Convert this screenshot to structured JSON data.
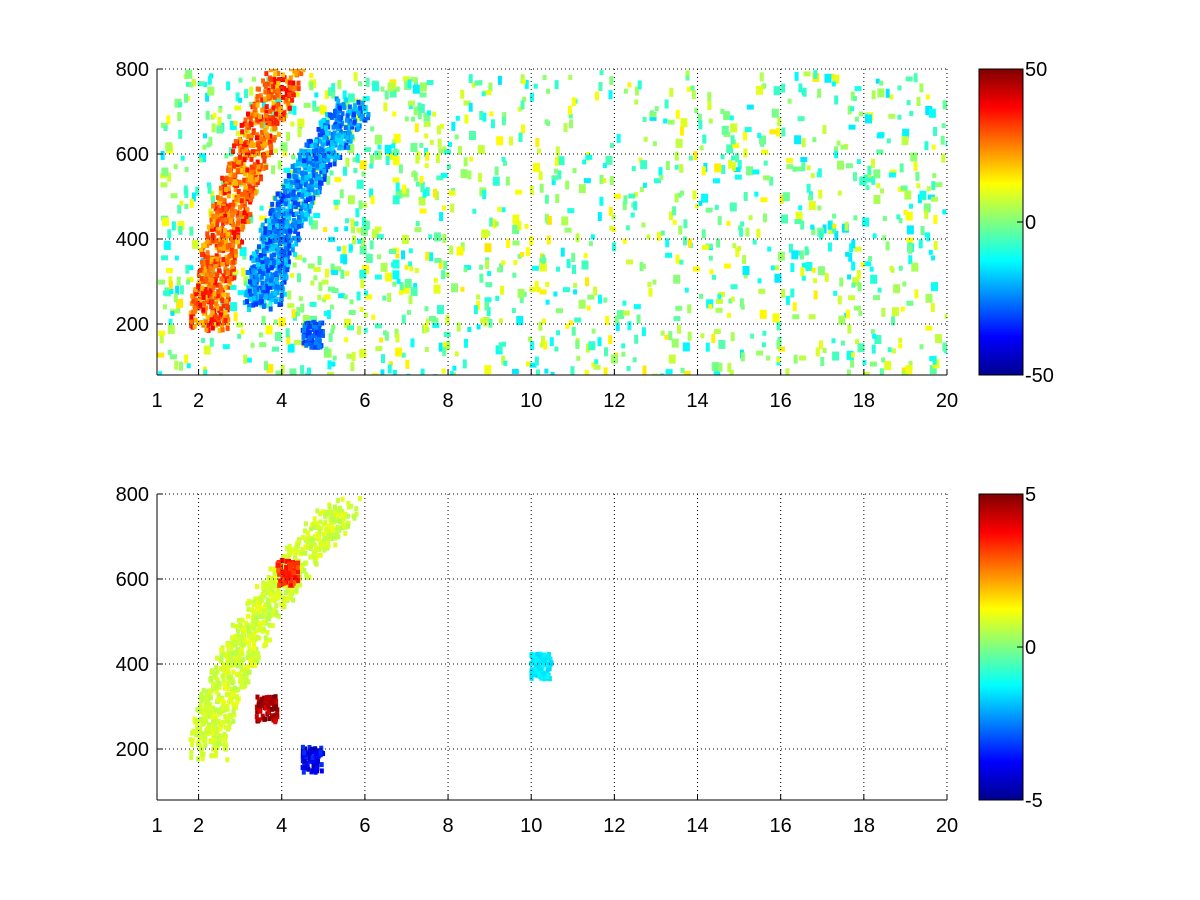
{
  "chart_data": [
    {
      "type": "heatmap",
      "title": "",
      "xlabel": "",
      "ylabel": "",
      "xlim": [
        1,
        20
      ],
      "ylim": [
        80,
        800
      ],
      "x_ticks": [
        1,
        2,
        4,
        6,
        8,
        10,
        12,
        14,
        16,
        18,
        20
      ],
      "y_ticks": [
        200,
        400,
        600,
        800
      ],
      "grid": true,
      "grid_style": "dotted",
      "colormap": "jet",
      "colorbar": {
        "min": -50,
        "max": 50,
        "ticks": [
          50,
          0,
          -50
        ],
        "placement": "right"
      },
      "features": [
        {
          "name": "positive ridge",
          "x_start": 2.2,
          "y_start": 200,
          "x_end": 4.1,
          "y_end": 800,
          "value": 35
        },
        {
          "name": "negative ridge",
          "x_start": 3.5,
          "y_start": 250,
          "x_end": 5.7,
          "y_end": 720,
          "value": -30
        },
        {
          "name": "negative patch",
          "x": 4.7,
          "y": 180,
          "value": -30
        }
      ],
      "background_values": [
        -15,
        15
      ]
    },
    {
      "type": "heatmap",
      "title": "",
      "xlabel": "",
      "ylabel": "",
      "xlim": [
        1,
        20
      ],
      "ylim": [
        80,
        800
      ],
      "x_ticks": [
        1,
        2,
        4,
        6,
        8,
        10,
        12,
        14,
        16,
        18,
        20
      ],
      "y_ticks": [
        200,
        400,
        600,
        800
      ],
      "grid": true,
      "grid_style": "dotted",
      "colormap": "jet",
      "colorbar": {
        "min": -5,
        "max": 5,
        "ticks": [
          5,
          0,
          -5
        ],
        "placement": "right"
      },
      "features": [
        {
          "name": "main band",
          "x_start": 2.2,
          "y_start": 200,
          "x_end": 5.5,
          "y_end": 780,
          "value": 1
        },
        {
          "name": "high-value cluster upper",
          "x": 4.1,
          "y": 620,
          "value": 3.5
        },
        {
          "name": "high-value cluster lower",
          "x": 3.6,
          "y": 300,
          "value": 5
        },
        {
          "name": "low-value patch",
          "x": 4.7,
          "y": 180,
          "value": -4
        },
        {
          "name": "isolated points",
          "x": 10.2,
          "y": 400,
          "value": -1.5
        }
      ]
    }
  ]
}
